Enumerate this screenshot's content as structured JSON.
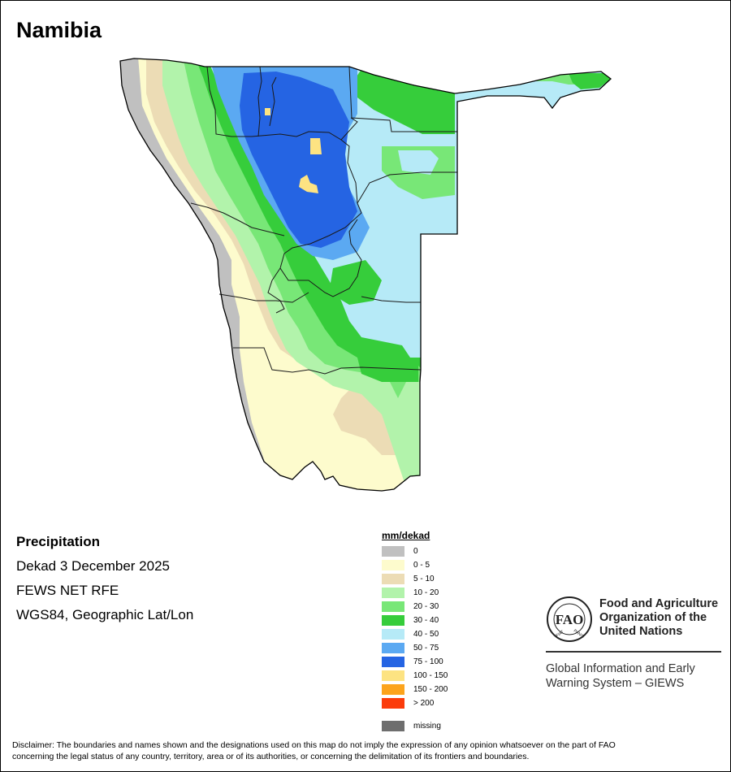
{
  "map": {
    "title": "Namibia"
  },
  "info": {
    "variable": "Precipitation",
    "period": "Dekad 3 December 2025",
    "source": "FEWS NET RFE",
    "projection": "WGS84, Geographic Lat/Lon"
  },
  "legend": {
    "title": "mm/dekad",
    "items": [
      {
        "label": "0",
        "color": "#c0c0c0"
      },
      {
        "label": "0 - 5",
        "color": "#fdfbcd"
      },
      {
        "label": "5 - 10",
        "color": "#ecdcb5"
      },
      {
        "label": "10 - 20",
        "color": "#b2f3ab"
      },
      {
        "label": "20 - 30",
        "color": "#78e777"
      },
      {
        "label": "30 - 40",
        "color": "#36cd3b"
      },
      {
        "label": "40 - 50",
        "color": "#b6eaf7"
      },
      {
        "label": "50 - 75",
        "color": "#5ba9f2"
      },
      {
        "label": "75 - 100",
        "color": "#2564e3"
      },
      {
        "label": "100 - 150",
        "color": "#fde382"
      },
      {
        "label": "150 - 200",
        "color": "#fca41c"
      },
      {
        "label": "> 200",
        "color": "#fb3c0b"
      },
      {
        "label": "missing",
        "color": "#6e6e6e"
      }
    ]
  },
  "org": {
    "name_line1": "Food and Agriculture",
    "name_line2": "Organization of the",
    "name_line3": "United Nations",
    "system_line1": "Global Information and Early",
    "system_line2": "Warning System – GIEWS",
    "logo_text": "FAO",
    "logo_motto_left": "FIAT",
    "logo_motto_right": "PANIS"
  },
  "disclaimer": {
    "line1": "Disclaimer: The boundaries and names shown and the designations used on this map do not imply the expression of any opinion whatsoever on the part of FAO",
    "line2": "concerning the legal status of any country, territory, area or of its authorities, or concerning the delimitation of its frontiers and boundaries."
  }
}
